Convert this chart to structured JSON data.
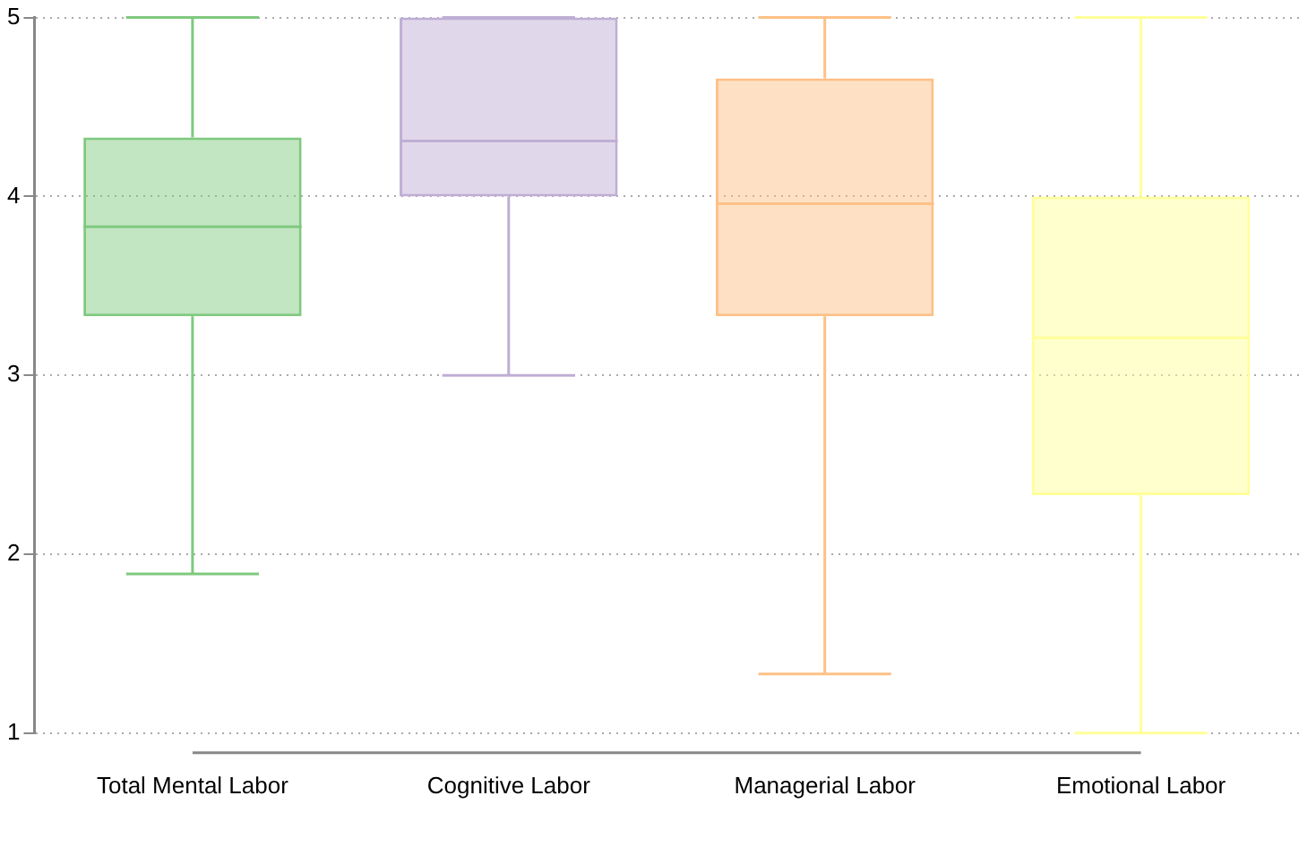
{
  "chart_data": {
    "type": "box",
    "categories": [
      "Total Mental Labor",
      "Cognitive Labor",
      "Managerial Labor",
      "Emotional Labor"
    ],
    "boxes": [
      {
        "low": 1.89,
        "q1": 3.33,
        "median": 3.83,
        "q3": 4.33,
        "high": 5
      },
      {
        "low": 3,
        "q1": 4,
        "median": 4.31,
        "q3": 5,
        "high": 5
      },
      {
        "low": 1.33,
        "q1": 3.33,
        "median": 3.96,
        "q3": 4.66,
        "high": 5
      },
      {
        "low": 1,
        "q1": 2.33,
        "median": 3.21,
        "q3": 4,
        "high": 5
      }
    ],
    "colors": [
      "#7fc97f",
      "#beaed4",
      "#fdc086",
      "#ffff99"
    ],
    "ylim": [
      1,
      5
    ],
    "yticks": [
      1,
      2,
      3,
      4,
      5
    ],
    "grid": "y",
    "legend": false
  }
}
